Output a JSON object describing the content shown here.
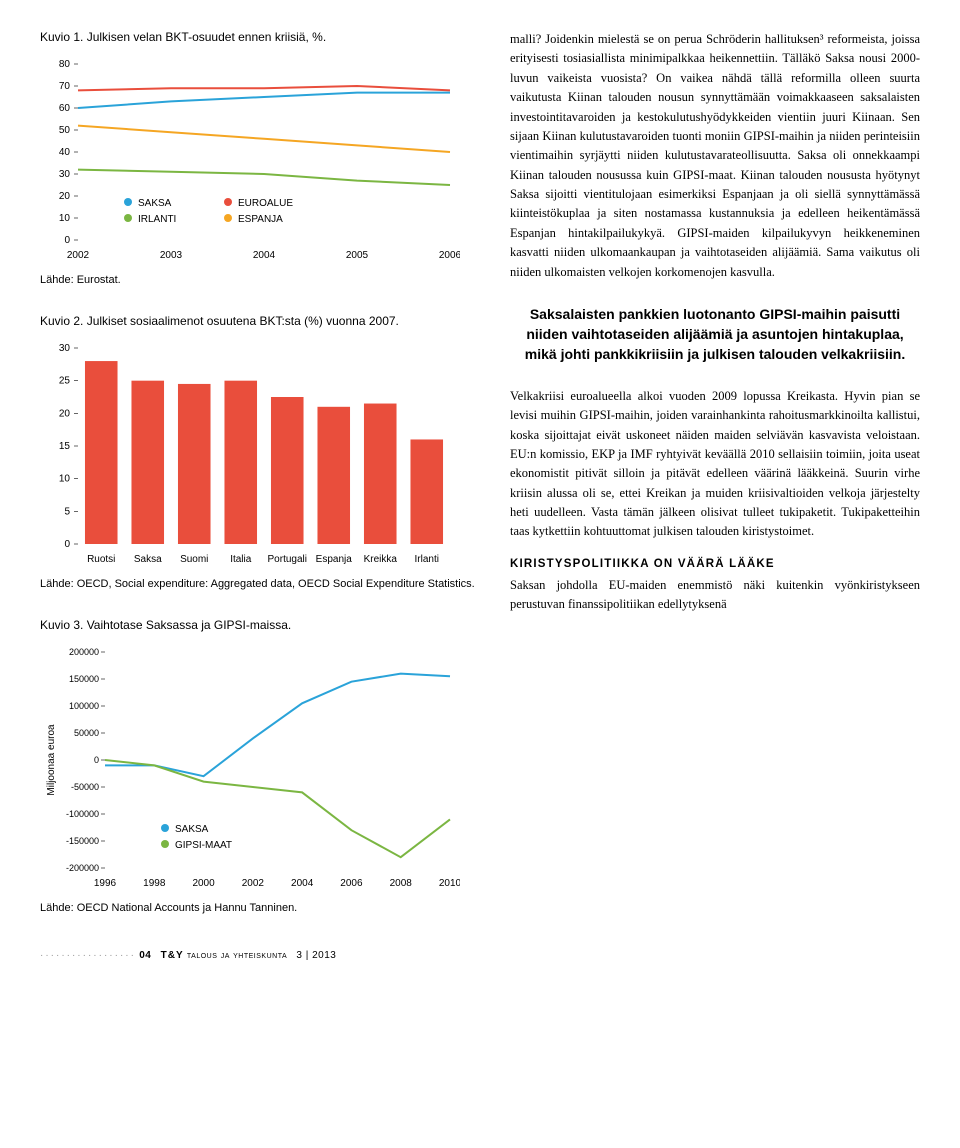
{
  "chart1": {
    "title": "Kuvio 1. Julkisen velan BKT-osuudet ennen kriisiä, %.",
    "source": "Lähde: Eurostat.",
    "x_ticks": [
      "2002",
      "2003",
      "2004",
      "2005",
      "2006"
    ],
    "y_ticks": [
      0,
      10,
      20,
      30,
      40,
      50,
      60,
      70,
      80
    ],
    "series": [
      {
        "name": "SAKSA",
        "color": "#2aa3d9",
        "values": [
          60,
          63,
          65,
          67,
          67
        ]
      },
      {
        "name": "IRLANTI",
        "color": "#7bb642",
        "values": [
          32,
          31,
          30,
          27,
          25
        ]
      },
      {
        "name": "EUROALUE",
        "color": "#e94e3c",
        "values": [
          68,
          69,
          69,
          70,
          68
        ]
      },
      {
        "name": "ESPANJA",
        "color": "#f5a623",
        "values": [
          52,
          49,
          46,
          43,
          40
        ]
      }
    ],
    "legend": [
      {
        "label": "SAKSA",
        "color": "#2aa3d9"
      },
      {
        "label": "IRLANTI",
        "color": "#7bb642"
      },
      {
        "label": "EUROALUE",
        "color": "#e94e3c"
      },
      {
        "label": "ESPANJA",
        "color": "#f5a623"
      }
    ]
  },
  "chart2": {
    "title": "Kuvio 2. Julkiset sosiaalimenot osuutena BKT:sta (%) vuonna 2007.",
    "source": "Lähde: OECD, Social expenditure: Aggregated data, OECD Social Expenditure Statistics.",
    "y_ticks": [
      0,
      5,
      10,
      15,
      20,
      25,
      30
    ],
    "bar_color": "#e94e3c",
    "categories": [
      "Ruotsi",
      "Saksa",
      "Suomi",
      "Italia",
      "Portugali",
      "Espanja",
      "Kreikka",
      "Irlanti"
    ],
    "values": [
      28,
      25,
      24.5,
      25,
      22.5,
      21,
      21.5,
      16
    ]
  },
  "chart3": {
    "title": "Kuvio 3. Vaihtotase Saksassa ja GIPSI-maissa.",
    "source": "Lähde: OECD National Accounts ja Hannu Tanninen.",
    "ylabel": "Miljoonaa euroa",
    "x_ticks": [
      "1996",
      "1998",
      "2000",
      "2002",
      "2004",
      "2006",
      "2008",
      "2010"
    ],
    "y_ticks": [
      -200000,
      -150000,
      -100000,
      -50000,
      0,
      50000,
      100000,
      150000,
      200000
    ],
    "series": [
      {
        "name": "SAKSA",
        "color": "#2aa3d9",
        "values": [
          -10000,
          -10000,
          -30000,
          40000,
          105000,
          145000,
          160000,
          155000
        ]
      },
      {
        "name": "GIPSI-MAAT",
        "color": "#7bb642",
        "values": [
          0,
          -10000,
          -40000,
          -50000,
          -60000,
          -130000,
          -180000,
          -110000
        ]
      }
    ],
    "legend": [
      {
        "label": "SAKSA",
        "color": "#2aa3d9"
      },
      {
        "label": "GIPSI-MAAT",
        "color": "#7bb642"
      }
    ]
  },
  "text": {
    "p1": "malli? Joidenkin mielestä se on perua Schröderin hallituksen³ reformeista, joissa erityisesti tosiasiallista minimipalkkaa heikennettiin. Tälläkö Saksa nousi 2000-luvun vaikeista vuosista? On vaikea nähdä tällä reformilla olleen suurta vaikutusta Kiinan talouden nousun synnyttämään voimakkaaseen saksalaisten investointitavaroiden ja kestokulutushyödykkeiden vientiin juuri Kiinaan. Sen sijaan Kiinan kulutustavaroiden tuonti moniin GIPSI-maihin ja niiden perinteisiin vientimaihin syrjäytti niiden kulutustavarateollisuutta. Saksa oli onnekkaampi Kiinan talouden nousussa kuin GIPSI-maat. Kiinan talouden noususta hyötynyt Saksa sijoitti vientitulojaan esimerkiksi Espanjaan ja oli siellä synnyttämässä kiinteistökuplaa ja siten nostamassa kustannuksia ja edelleen heikentämässä Espanjan hintakilpailukykyä. GIPSI-maiden kilpailukyvyn heikkeneminen kasvatti niiden ulkomaankaupan ja vaihtotaseiden alijäämiä. Sama vaikutus oli niiden ulkomaisten velkojen korkomenojen kasvulla.",
    "pullquote": "Saksalaisten pankkien luotonanto GIPSI-maihin paisutti niiden vaihtotaseiden alijäämiä ja asuntojen hintakuplaa, mikä johti pankkikriisiin ja julkisen talouden velkakriisiin.",
    "p2": "Velkakriisi euroalueella alkoi vuoden 2009 lopussa Kreikasta. Hyvin pian se levisi muihin GIPSI-maihin, joiden varainhankinta rahoitusmarkkinoilta kallistui, koska sijoittajat eivät uskoneet näiden maiden selviävän kasvavista veloistaan. EU:n komissio, EKP ja IMF ryhtyivät keväällä 2010 sellaisiin toimiin, joita useat ekonomistit pitivät silloin ja pitävät edelleen väärinä lääkkeinä. Suurin virhe kriisin alussa oli se, ettei Kreikan ja muiden kriisivaltioiden velkoja järjestelty heti uudelleen. Vasta tämän jälkeen olisivat tulleet tukipaketit. Tukipaketteihin taas kytkettiin kohtuuttomat julkisen talouden kiristystoimet.",
    "section_head": "KIRISTYSPOLITIIKKA ON VÄÄRÄ LÄÄKE",
    "p3": "Saksan johdolla EU-maiden enemmistö näki kuitenkin vyönkiristykseen perustuvan finanssipolitiikan edellytyksenä"
  },
  "footer": {
    "page": "04",
    "mag": "T&Y",
    "rest": "talous ja yhteiskunta",
    "issue": "3 | 2013"
  }
}
